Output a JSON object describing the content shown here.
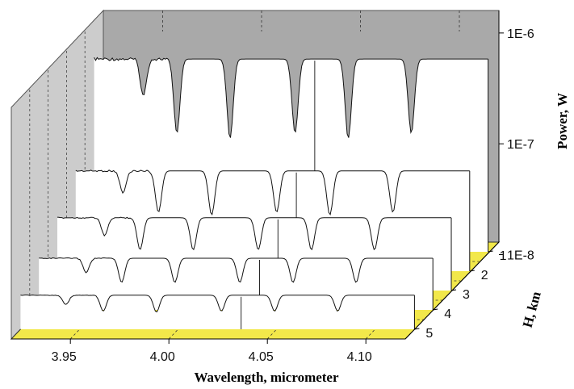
{
  "chart_data": {
    "type": "line",
    "view": "3d-waterfall",
    "title": "",
    "xlabel": "Wavelength, micrometer",
    "ylabel": "H, km",
    "zlabel": "Power, W",
    "x_ticks": [
      "3.95",
      "4.00",
      "4.05",
      "4.10"
    ],
    "x_tick_values": [
      3.95,
      4.0,
      4.05,
      4.1
    ],
    "xlim": [
      3.92,
      4.12
    ],
    "y_ticks": [
      "1",
      "2",
      "3",
      "4",
      "5"
    ],
    "y_tick_values": [
      1,
      2,
      3,
      4,
      5
    ],
    "z_ticks": [
      "1E-6",
      "1E-7",
      "1E-8"
    ],
    "z_tick_values": [
      1e-06,
      1e-07,
      1e-08
    ],
    "z_scale": "log",
    "grid": true,
    "colors": {
      "floor": "#f2e84a",
      "back_wall": "#a9a9a9",
      "side_wall": "#cccccc",
      "line": "#111111",
      "panel": "#ffffff"
    },
    "series": [
      {
        "h": 1,
        "baseline_power": 1e-06,
        "absorption_lines_um": [
          3.945,
          3.962,
          3.989,
          4.022,
          4.049,
          4.081
        ],
        "line_depths": [
          0.35,
          0.7,
          0.75,
          0.7,
          0.75,
          0.7
        ]
      },
      {
        "h": 2,
        "baseline_power": 1e-07,
        "absorption_lines_um": [
          3.944,
          3.962,
          3.989,
          4.022,
          4.049,
          4.081
        ],
        "line_depths": [
          0.4,
          0.75,
          0.8,
          0.75,
          0.8,
          0.75
        ]
      },
      {
        "h": 3,
        "baseline_power": 5e-08,
        "absorption_lines_um": [
          3.944,
          3.962,
          3.989,
          4.022,
          4.049,
          4.081
        ],
        "line_depths": [
          0.45,
          0.8,
          0.8,
          0.8,
          0.8,
          0.8
        ]
      },
      {
        "h": 4,
        "baseline_power": 3e-08,
        "absorption_lines_um": [
          3.944,
          3.962,
          3.989,
          4.022,
          4.049,
          4.081
        ],
        "line_depths": [
          0.5,
          0.85,
          0.85,
          0.85,
          0.85,
          0.85
        ]
      },
      {
        "h": 5,
        "baseline_power": 2e-08,
        "absorption_lines_um": [
          3.943,
          3.962,
          3.989,
          4.022,
          4.049,
          4.081
        ],
        "line_depths": [
          0.5,
          0.85,
          0.9,
          0.85,
          0.85,
          0.85
        ]
      }
    ]
  }
}
